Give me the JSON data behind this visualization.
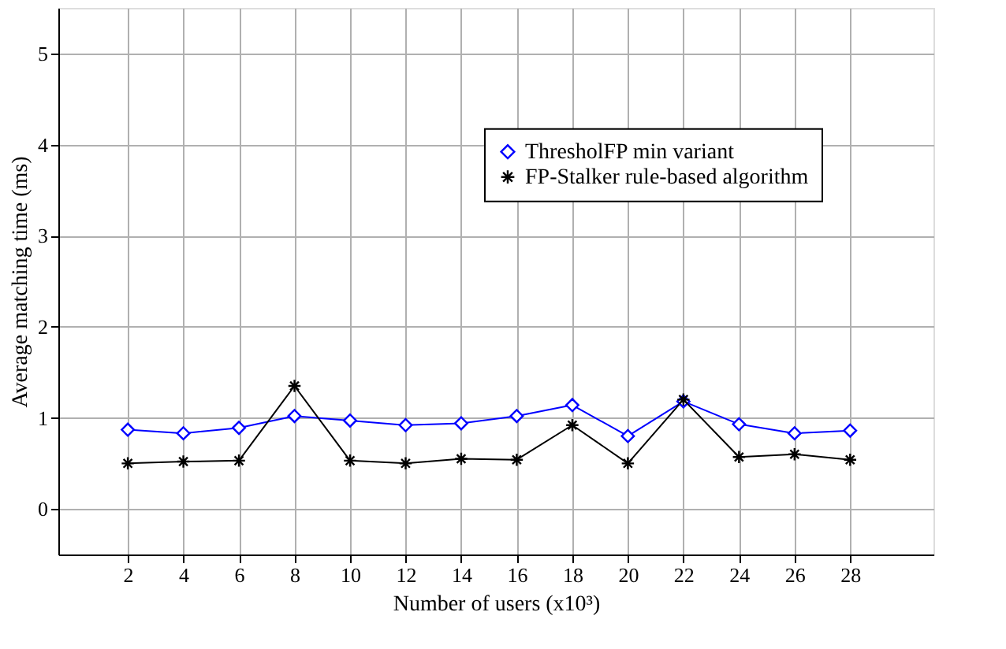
{
  "chart_data": {
    "type": "line",
    "xlabel": "Number of users (x10³)",
    "ylabel": "Average matching time (ms)",
    "x": [
      2,
      4,
      6,
      8,
      10,
      12,
      14,
      16,
      18,
      20,
      22,
      24,
      26,
      28
    ],
    "xlim": [
      -0.5,
      31
    ],
    "xticks": [
      2,
      4,
      6,
      8,
      10,
      12,
      14,
      16,
      18,
      20,
      22,
      24,
      26,
      28
    ],
    "ylim": [
      -0.5,
      5.5
    ],
    "yticks": [
      0,
      1,
      2,
      3,
      4,
      5
    ],
    "series": [
      {
        "name": "ThresholFP min variant",
        "color": "#0000ff",
        "marker": "diamond",
        "values": [
          0.87,
          0.83,
          0.89,
          1.02,
          0.97,
          0.92,
          0.94,
          1.02,
          1.14,
          0.8,
          1.18,
          0.93,
          0.83,
          0.86
        ]
      },
      {
        "name": "FP-Stalker rule-based algorithm",
        "color": "#000000",
        "marker": "cross",
        "values": [
          0.5,
          0.52,
          0.53,
          1.35,
          0.53,
          0.5,
          0.55,
          0.54,
          0.92,
          0.5,
          1.2,
          0.57,
          0.6,
          0.54
        ]
      }
    ],
    "grid": true,
    "legend": "top right",
    "line_style": "solid"
  }
}
